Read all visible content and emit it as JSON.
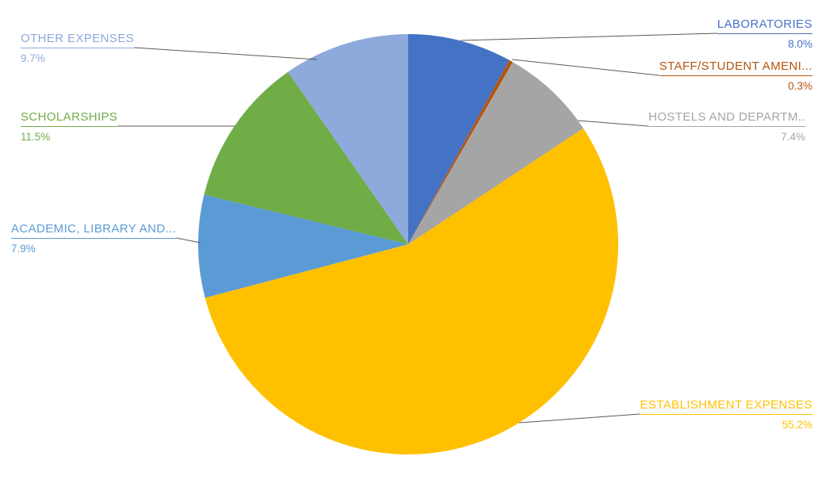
{
  "chart_data": {
    "type": "pie",
    "title": "",
    "legend_position": "none",
    "label_style": "callout-with-leader-lines",
    "direction": "clockwise",
    "start_angle_deg": 0,
    "total": 100.0,
    "background_color": "#ffffff",
    "leader_line_color": "#595959",
    "slices": [
      {
        "label": "LABORATORIES",
        "value": 8.0,
        "percent_label": "8.0%",
        "color": "#4472C4",
        "side": "right"
      },
      {
        "label": "STAFF/STUDENT AMENI...",
        "value": 0.3,
        "percent_label": "0.3%",
        "color": "#B5540C",
        "side": "right"
      },
      {
        "label": "HOSTELS AND DEPARTM..",
        "value": 7.4,
        "percent_label": "7.4%",
        "color": "#A5A5A5",
        "side": "right"
      },
      {
        "label": "ESTABLISHMENT EXPENSES",
        "value": 55.2,
        "percent_label": "55.2%",
        "color": "#FFC000",
        "side": "right"
      },
      {
        "label": "ACADEMIC, LIBRARY AND...",
        "value": 7.9,
        "percent_label": "7.9%",
        "color": "#5B9BD5",
        "side": "left"
      },
      {
        "label": "SCHOLARSHIPS",
        "value": 11.5,
        "percent_label": "11.5%",
        "color": "#70AD47",
        "side": "left"
      },
      {
        "label": "OTHER EXPENSES",
        "value": 9.7,
        "percent_label": "9.7%",
        "color": "#8EA9DB",
        "side": "left"
      }
    ]
  }
}
